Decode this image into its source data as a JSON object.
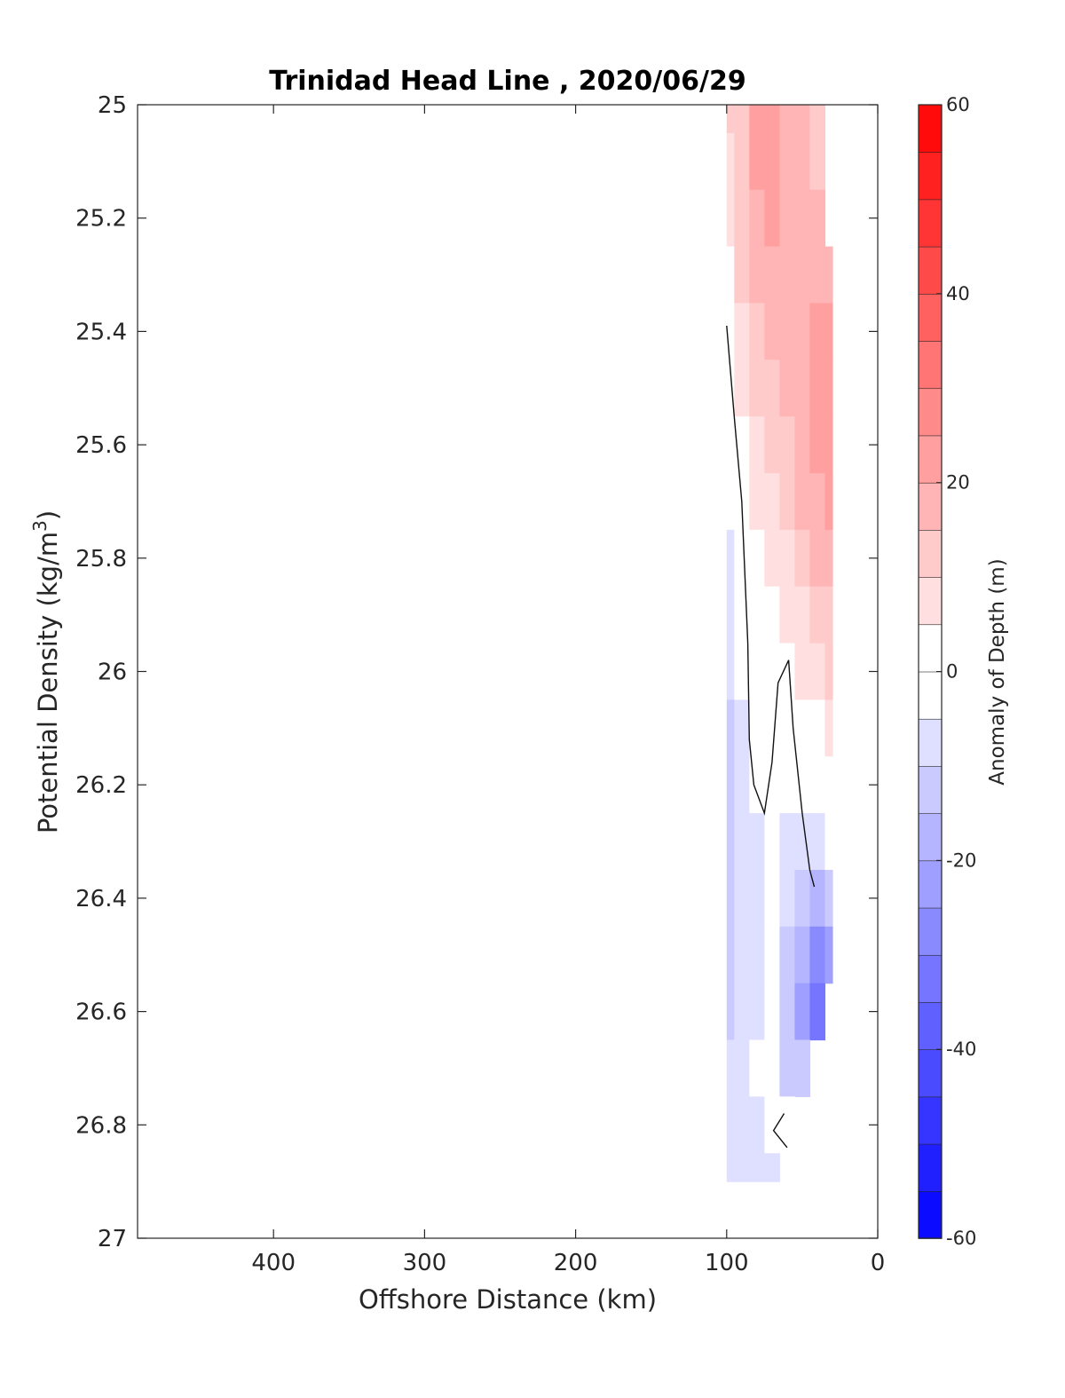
{
  "chart_data": {
    "type": "heatmap",
    "title": "Trinidad Head Line , 2020/06/29",
    "xlabel": "Offshore Distance (km)",
    "ylabel": "Potential Density (kg/m",
    "ylabel_superscript": "3",
    "ylabel_suffix": ")",
    "xlim": [
      490,
      0
    ],
    "ylim": [
      27,
      25
    ],
    "x_reversed": true,
    "y_reversed": true,
    "x_ticks": [
      400,
      300,
      200,
      100,
      0
    ],
    "x_tick_labels": [
      "400",
      "300",
      "200",
      "100",
      "0"
    ],
    "y_ticks": [
      25,
      25.2,
      25.4,
      25.6,
      25.8,
      26,
      26.2,
      26.4,
      26.6,
      26.8,
      27
    ],
    "y_tick_labels": [
      "25",
      "25.2",
      "25.4",
      "25.6",
      "25.8",
      "26",
      "26.2",
      "26.4",
      "26.6",
      "26.8",
      "27"
    ],
    "colorbar": {
      "label": "Anomaly of Depth (m)",
      "range": [
        -60,
        60
      ],
      "step": 5,
      "ticks": [
        60,
        40,
        20,
        0,
        -20,
        -40,
        -60
      ],
      "tick_labels": [
        "60",
        "40",
        "20",
        "0",
        "-20",
        "-40",
        "-60"
      ],
      "color_max": "#ff0000",
      "color_mid": "#ffffff",
      "color_min": "#0000ff"
    },
    "x": [
      100,
      90,
      80,
      70,
      60,
      50,
      40,
      30
    ],
    "y": [
      25,
      25.1,
      25.2,
      25.3,
      25.4,
      25.5,
      25.6,
      25.7,
      25.8,
      25.9,
      26,
      26.1,
      26.2,
      26.3,
      26.4,
      26.5,
      26.6,
      26.7,
      26.8,
      26.9
    ],
    "values": [
      [
        10,
        14,
        20,
        21,
        17,
        15,
        13,
        null
      ],
      [
        8,
        13,
        20,
        22,
        17,
        16,
        13,
        null
      ],
      [
        6,
        12,
        19,
        21,
        18,
        17,
        16,
        null
      ],
      [
        3,
        10,
        16,
        19,
        19,
        19,
        18,
        19
      ],
      [
        1,
        8,
        13,
        16,
        17,
        19,
        20,
        21
      ],
      [
        -1,
        5,
        10,
        14,
        16,
        18,
        21,
        23
      ],
      [
        -3,
        3,
        8,
        11,
        14,
        17,
        20,
        22
      ],
      [
        -5,
        1,
        5,
        9,
        12,
        15,
        18,
        20
      ],
      [
        -7,
        -1,
        3,
        6,
        9,
        12,
        15,
        17
      ],
      [
        -9,
        -3,
        1,
        4,
        6,
        9,
        12,
        14
      ],
      [
        -10,
        -5,
        -1,
        2,
        4,
        6,
        8,
        10
      ],
      [
        -11,
        -7,
        -3,
        -1,
        1,
        3,
        4,
        6
      ],
      [
        -12,
        -8,
        -5,
        -3,
        -1,
        -1,
        1,
        3
      ],
      [
        -13,
        -9,
        -6,
        -4,
        -6,
        -8,
        -6,
        -3
      ],
      [
        -13,
        -10,
        -7,
        -5,
        -10,
        -14,
        -18,
        -12
      ],
      [
        -12,
        -10,
        -7,
        -5,
        -13,
        -20,
        -27,
        -25
      ],
      [
        -11,
        -8,
        -6,
        -4,
        -14,
        -23,
        -34,
        null
      ],
      [
        -8,
        -6,
        -4,
        -3,
        -12,
        -14,
        null,
        null
      ],
      [
        -7,
        -6,
        -6,
        -4,
        -1,
        null,
        null,
        null
      ],
      [
        -10,
        -8,
        -9,
        -7,
        null,
        null,
        null,
        null
      ]
    ],
    "zero_contour": [
      {
        "points": [
          [
            100,
            25.39
          ],
          [
            95,
            25.55
          ],
          [
            90,
            25.7
          ],
          [
            86,
            25.95
          ],
          [
            85,
            26.12
          ],
          [
            82,
            26.2
          ],
          [
            75,
            26.25
          ],
          [
            70,
            26.16
          ],
          [
            66,
            26.02
          ],
          [
            59,
            25.98
          ],
          [
            56,
            26.1
          ],
          [
            50,
            26.25
          ],
          [
            45,
            26.35
          ],
          [
            42,
            26.38
          ]
        ]
      },
      {
        "points": [
          [
            62,
            26.78
          ],
          [
            69,
            26.81
          ],
          [
            60,
            26.84
          ]
        ]
      }
    ]
  }
}
